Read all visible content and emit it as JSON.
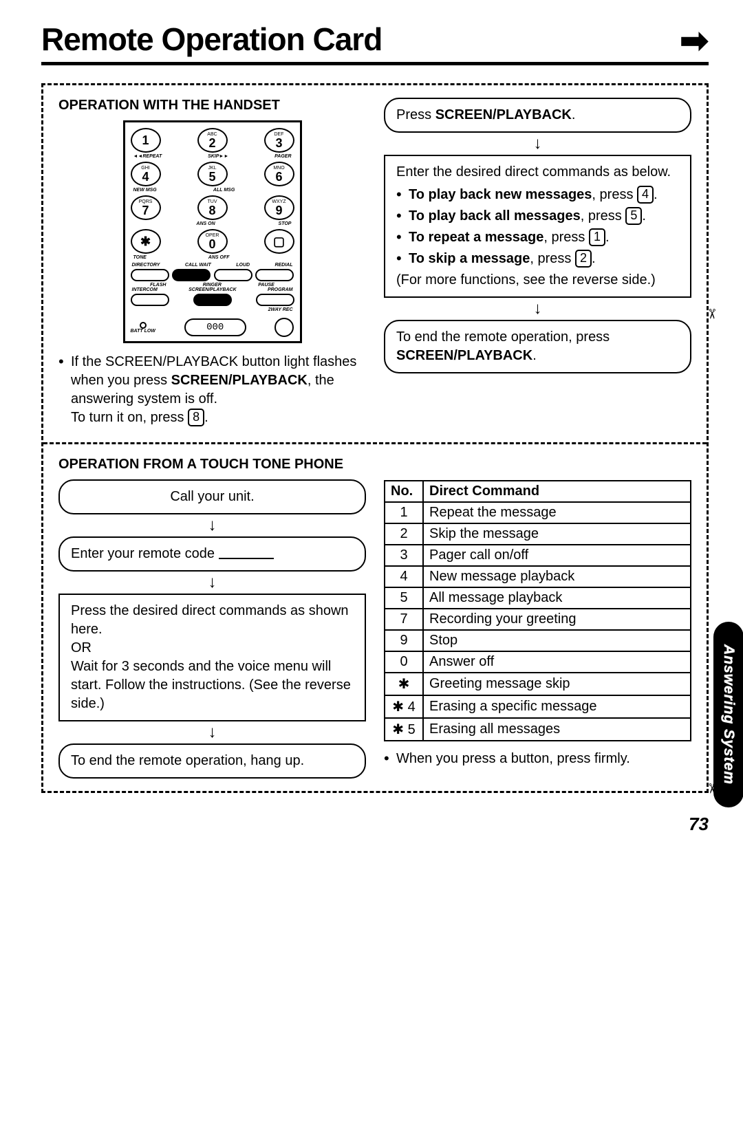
{
  "title": "Remote Operation Card",
  "page_number": "73",
  "side_tab": "Answering System",
  "handset_section": {
    "heading": "OPERATION WITH THE HANDSET",
    "keypad": {
      "rows": [
        [
          {
            "top": "",
            "num": "1"
          },
          {
            "top": "ABC",
            "num": "2"
          },
          {
            "top": "DEF",
            "num": "3"
          }
        ],
        [
          {
            "top": "GHI",
            "num": "4"
          },
          {
            "top": "JKL",
            "num": "5"
          },
          {
            "top": "MNO",
            "num": "6"
          }
        ],
        [
          {
            "top": "PQRS",
            "num": "7"
          },
          {
            "top": "TUV",
            "num": "8"
          },
          {
            "top": "WXYZ",
            "num": "9"
          }
        ],
        [
          {
            "top": "",
            "num": "✱"
          },
          {
            "top": "OPER",
            "num": "0"
          },
          {
            "top": "",
            "num": "▢"
          }
        ]
      ],
      "sublabels": [
        [
          "◄◄REPEAT",
          "SKIP►►",
          "PAGER"
        ],
        [
          "NEW MSG",
          "ALL MSG",
          ""
        ],
        [
          "",
          "ANS ON",
          "STOP"
        ],
        [
          "TONE",
          "ANS OFF",
          ""
        ]
      ],
      "fn_row1": [
        "DIRECTORY",
        "CALL WAIT",
        "LOUD",
        "REDIAL"
      ],
      "fn_row2": [
        "FLASH",
        "RINGER",
        "PAUSE"
      ],
      "fn_row3": [
        "INTERCOM",
        "SCREEN/PLAYBACK",
        "PROGRAM"
      ],
      "rec_label": "2WAY REC",
      "batt_label": "BATT LOW",
      "lcd": "000"
    },
    "note_line1": "If the SCREEN/PLAYBACK button light flashes when you press ",
    "note_bold1": "SCREEN/PLAYBACK",
    "note_line2": ", the answering system is off.",
    "note_line3": "To turn it on, press ",
    "note_key": "8",
    "note_line4": "."
  },
  "right_top": {
    "box1_prefix": "Press ",
    "box1_bold": "SCREEN/PLAYBACK",
    "box1_suffix": ".",
    "box2_intro": "Enter the desired direct commands as below.",
    "items": [
      {
        "bold": "To play back new messages",
        "rest": ", press ",
        "key": "4",
        "after": "."
      },
      {
        "bold": "To play back all messages",
        "rest": ", press ",
        "key": "5",
        "after": "."
      },
      {
        "bold": "To repeat a message",
        "rest": ", press ",
        "key": "1",
        "after": "."
      },
      {
        "bold": "To skip a message",
        "rest": ", press ",
        "key": "2",
        "after": "."
      }
    ],
    "box2_outro": "(For more functions, see the reverse side.)",
    "box3_line1": "To end the remote operation, press ",
    "box3_bold": "SCREEN/PLAYBACK",
    "box3_suffix": "."
  },
  "touchtone_section": {
    "heading": "OPERATION FROM A TOUCH TONE PHONE",
    "step1": "Call your unit.",
    "step2": "Enter your remote code ",
    "step3": "Press the desired direct commands as shown here.\nOR\nWait for 3 seconds and the voice menu will start. Follow the instructions. (See the reverse side.)",
    "step4": "To end the remote operation, hang up."
  },
  "command_table": {
    "head_no": "No.",
    "head_cmd": "Direct Command",
    "rows": [
      {
        "no": "1",
        "cmd": "Repeat the message"
      },
      {
        "no": "2",
        "cmd": "Skip the message"
      },
      {
        "no": "3",
        "cmd": "Pager call on/off"
      },
      {
        "no": "4",
        "cmd": "New message playback"
      },
      {
        "no": "5",
        "cmd": "All message playback"
      },
      {
        "no": "7",
        "cmd": "Recording your greeting"
      },
      {
        "no": "9",
        "cmd": "Stop"
      },
      {
        "no": "0",
        "cmd": "Answer off"
      },
      {
        "no": "✱",
        "cmd": "Greeting message skip"
      },
      {
        "no": "✱ 4",
        "cmd": "Erasing a specific message"
      },
      {
        "no": "✱ 5",
        "cmd": "Erasing all messages"
      }
    ],
    "footnote": "When you press a button, press firmly."
  }
}
